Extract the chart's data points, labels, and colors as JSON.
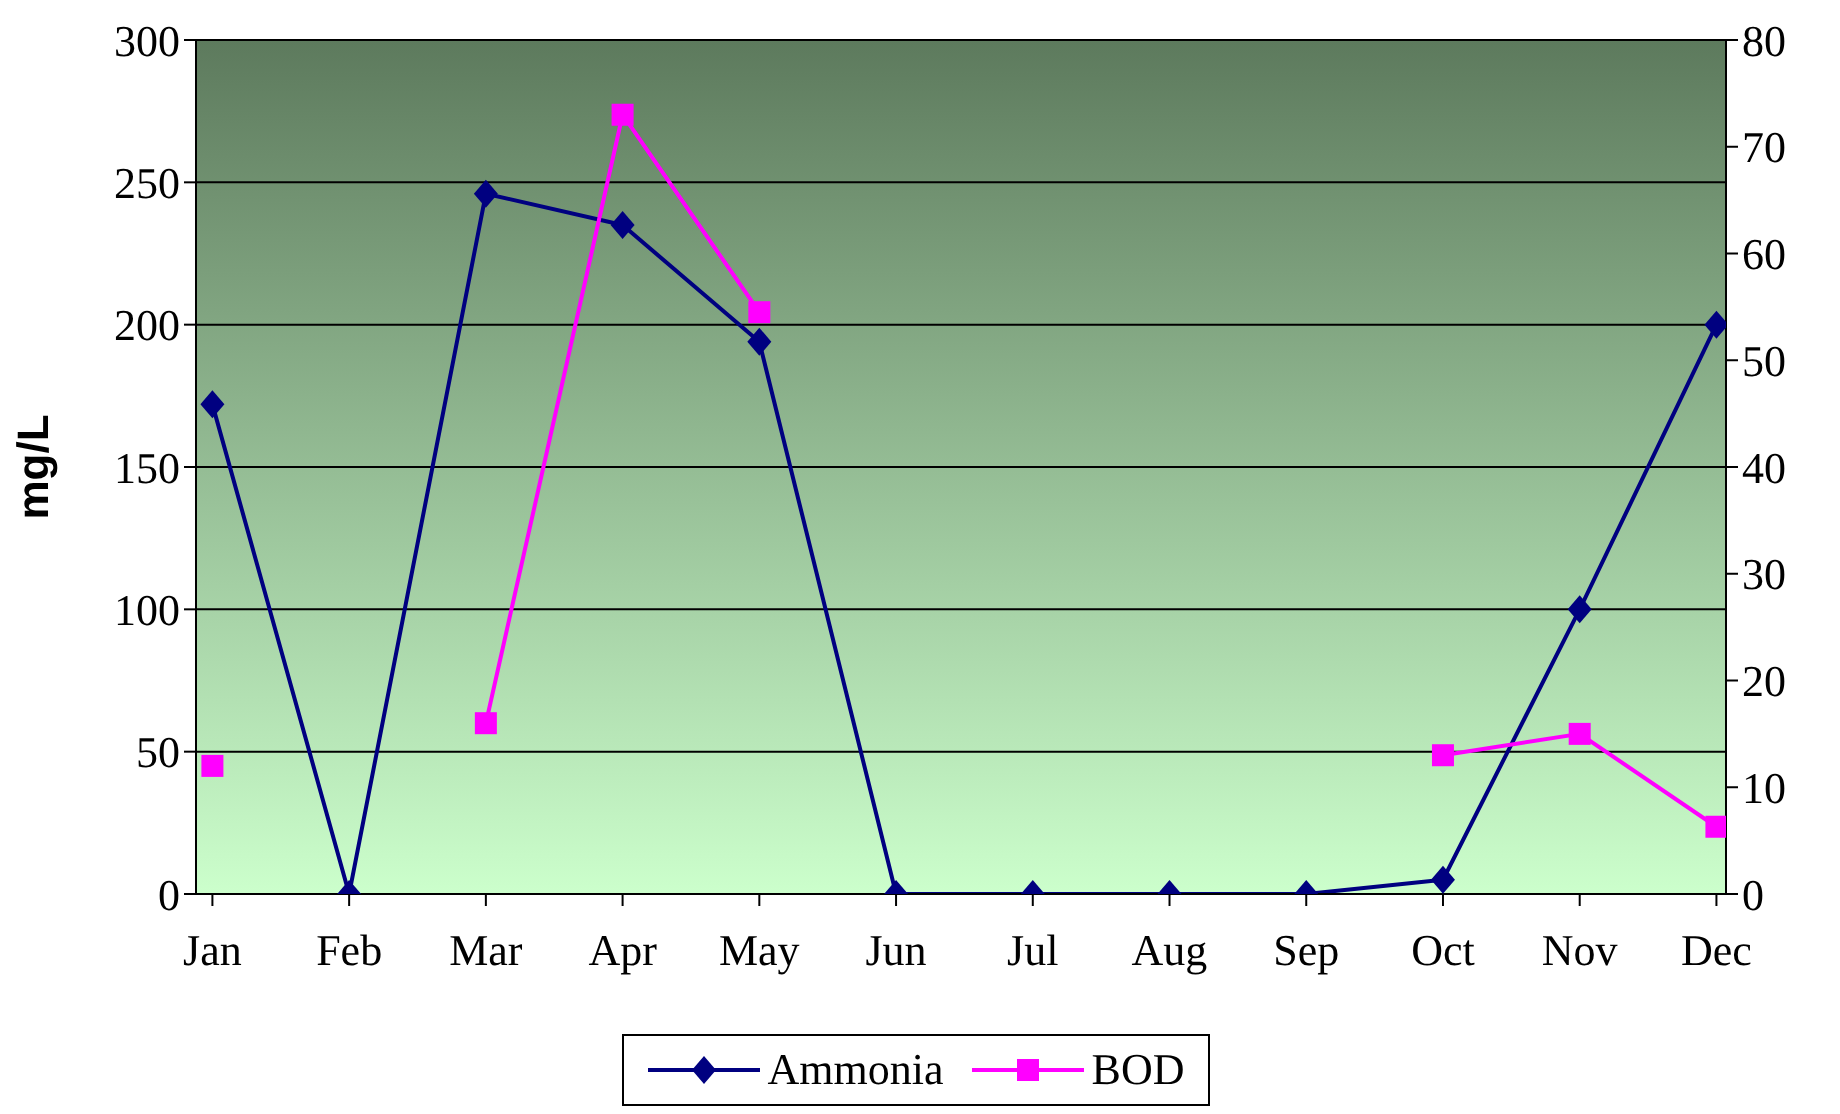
{
  "chart_data": {
    "type": "line",
    "ylabel": "mg/L",
    "categories": [
      "Jan",
      "Feb",
      "Mar",
      "Apr",
      "May",
      "Jun",
      "Jul",
      "Aug",
      "Sep",
      "Oct",
      "Nov",
      "Dec"
    ],
    "series": [
      {
        "name": "Ammonia",
        "color": "#000080",
        "marker": "diamond",
        "values": [
          172,
          0,
          246,
          235,
          194,
          0,
          0,
          0,
          0,
          5,
          100,
          200
        ]
      },
      {
        "name": "BOD",
        "color": "#ff00ff",
        "marker": "square",
        "axis": "y2",
        "values": [
          12,
          null,
          16,
          73,
          54.5,
          null,
          null,
          null,
          null,
          13,
          15,
          6.3
        ]
      }
    ],
    "ylim": [
      0,
      300
    ],
    "yticks": [
      0,
      50,
      100,
      150,
      200,
      250,
      300
    ],
    "y2lim": [
      0,
      80
    ],
    "y2ticks": [
      0,
      10,
      20,
      30,
      40,
      50,
      60,
      70,
      80
    ],
    "grid": "y",
    "legend": "bottom"
  }
}
